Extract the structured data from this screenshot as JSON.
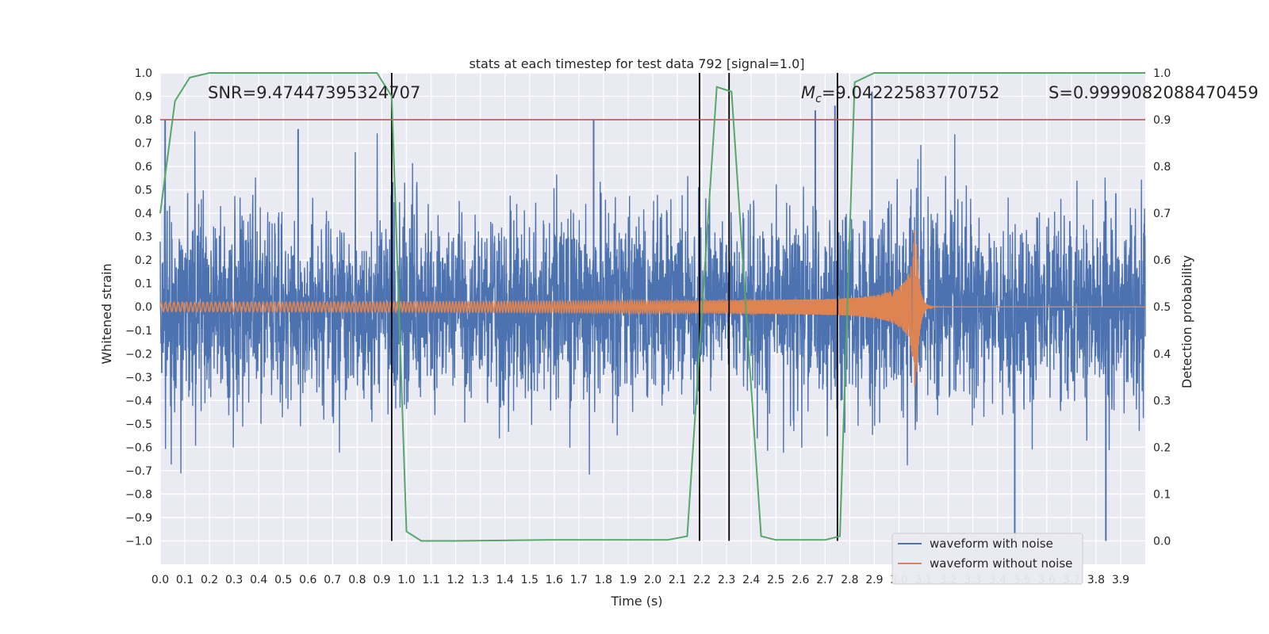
{
  "chart_data": {
    "type": "line",
    "title": "stats at each timestep for test data 792 [signal=1.0]",
    "xlabel": "Time (s)",
    "ylabel": "Whitened strain",
    "ylabel_right": "Detection probability",
    "xlim": [
      0.0,
      4.0
    ],
    "ylim": [
      -1.1,
      1.0
    ],
    "ylim_right": [
      -0.05,
      1.0
    ],
    "x_ticks": [
      "0.0",
      "0.1",
      "0.2",
      "0.3",
      "0.4",
      "0.5",
      "0.6",
      "0.7",
      "0.8",
      "0.9",
      "1.0",
      "1.1",
      "1.2",
      "1.3",
      "1.4",
      "1.5",
      "1.6",
      "1.7",
      "1.8",
      "1.9",
      "2.0",
      "2.1",
      "2.2",
      "2.3",
      "2.4",
      "2.5",
      "2.6",
      "2.7",
      "2.8",
      "2.9",
      "3.0",
      "3.1",
      "3.2",
      "3.3",
      "3.4",
      "3.5",
      "3.6",
      "3.7",
      "3.8",
      "3.9"
    ],
    "y_ticks": [
      "1.0",
      "0.9",
      "0.8",
      "0.7",
      "0.6",
      "0.5",
      "0.4",
      "0.3",
      "0.2",
      "0.1",
      "0.0",
      "−0.1",
      "−0.2",
      "−0.3",
      "−0.4",
      "−0.5",
      "−0.6",
      "−0.7",
      "−0.8",
      "−0.9",
      "−1.0"
    ],
    "y_ticks_right": [
      "1.0",
      "0.9",
      "0.8",
      "0.7",
      "0.6",
      "0.5",
      "0.4",
      "0.3",
      "0.2",
      "0.1",
      "0.0"
    ],
    "grid": true,
    "legend_position": "lower-right",
    "annotations": {
      "snr": "SNR=9.47447395324707",
      "mc_symbol": "M",
      "mc_sub": "c",
      "mc_value": "=9.04222583770752",
      "s": "S=0.9999082088470459"
    },
    "series": [
      {
        "name": "waveform with noise",
        "color": "#4c72b0",
        "kind": "noise",
        "sigma": 0.2,
        "notable_peaks": [
          [
            0.02,
            0.8
          ],
          [
            0.56,
            0.76
          ],
          [
            1.76,
            0.8
          ],
          [
            2.66,
            0.84
          ],
          [
            2.74,
            0.86
          ],
          [
            2.89,
            0.92
          ],
          [
            3.47,
            -1.0
          ],
          [
            3.84,
            -1.0
          ]
        ]
      },
      {
        "name": "waveform without noise",
        "color": "#dd8452",
        "kind": "chirp",
        "amplitude_start": 0.02,
        "amplitude_peak": 0.34,
        "merger_time": 3.07
      },
      {
        "name": "detection probability",
        "color": "#55a868",
        "axis": "right",
        "x": [
          0.0,
          0.06,
          0.12,
          0.2,
          0.5,
          0.88,
          0.94,
          1.0,
          1.06,
          1.2,
          1.58,
          2.06,
          2.14,
          2.26,
          2.32,
          2.44,
          2.5,
          2.7,
          2.76,
          2.82,
          2.9,
          4.0
        ],
        "y": [
          0.7,
          0.94,
          0.99,
          1.0,
          1.0,
          1.0,
          0.95,
          0.02,
          0.0,
          0.0,
          0.002,
          0.002,
          0.01,
          0.97,
          0.96,
          0.01,
          0.002,
          0.002,
          0.01,
          0.98,
          1.0,
          1.0
        ]
      }
    ],
    "threshold": {
      "y_right": 0.9,
      "color": "#c44e52"
    },
    "vertical_lines": [
      0.94,
      2.19,
      2.31,
      2.75
    ]
  }
}
